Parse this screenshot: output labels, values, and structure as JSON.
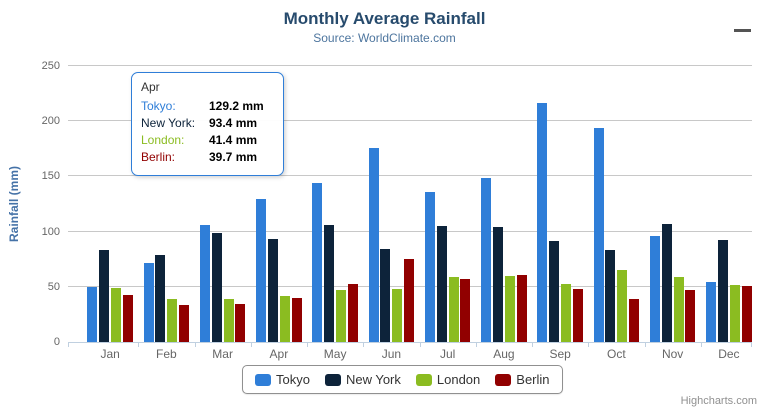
{
  "header": {
    "title": "Monthly Average Rainfall",
    "subtitle": "Source: WorldClimate.com"
  },
  "chart_data": {
    "type": "bar",
    "title": "Monthly Average Rainfall",
    "subtitle": "Source: WorldClimate.com",
    "categories": [
      "Jan",
      "Feb",
      "Mar",
      "Apr",
      "May",
      "Jun",
      "Jul",
      "Aug",
      "Sep",
      "Oct",
      "Nov",
      "Dec"
    ],
    "series": [
      {
        "name": "Tokyo",
        "color": "#2f7ed8",
        "values": [
          49.9,
          71.5,
          106.4,
          129.2,
          144.0,
          176.0,
          135.6,
          148.5,
          216.4,
          194.1,
          95.6,
          54.4
        ]
      },
      {
        "name": "New York",
        "color": "#0d233a",
        "values": [
          83.6,
          78.8,
          98.5,
          93.4,
          106.0,
          84.5,
          105.0,
          104.3,
          91.2,
          83.5,
          106.6,
          92.3
        ]
      },
      {
        "name": "London",
        "color": "#8bbc21",
        "values": [
          48.9,
          38.8,
          39.3,
          41.4,
          47.0,
          48.3,
          59.0,
          59.6,
          52.4,
          65.2,
          59.3,
          51.2
        ]
      },
      {
        "name": "Berlin",
        "color": "#910000",
        "values": [
          42.4,
          33.2,
          34.5,
          39.7,
          52.6,
          75.5,
          57.4,
          60.4,
          47.6,
          39.1,
          46.8,
          51.1
        ]
      }
    ],
    "xlabel": "",
    "ylabel": "Rainfall (mm)",
    "ylim": [
      0,
      250
    ],
    "yticks": [
      0,
      50,
      100,
      150,
      200,
      250
    ],
    "grid": true,
    "legend_position": "bottom-center"
  },
  "tooltip": {
    "header": "Apr",
    "rows": [
      {
        "label": "Tokyo:",
        "value": "129.2 mm",
        "color": "#2f7ed8"
      },
      {
        "label": "New York:",
        "value": "93.4 mm",
        "color": "#0d233a"
      },
      {
        "label": "London:",
        "value": "41.4 mm",
        "color": "#8bbc21"
      },
      {
        "label": "Berlin:",
        "value": "39.7 mm",
        "color": "#910000"
      }
    ]
  },
  "credit": "Highcharts.com",
  "colors": {
    "title": "#274b6d",
    "subtitle": "#4d759e",
    "axis_title": "#4572a7",
    "axis_labels": "#666666",
    "gridline": "#c8c8c8",
    "axis_line": "#c0d0e0",
    "tooltip_border": "#2f7ed8"
  }
}
